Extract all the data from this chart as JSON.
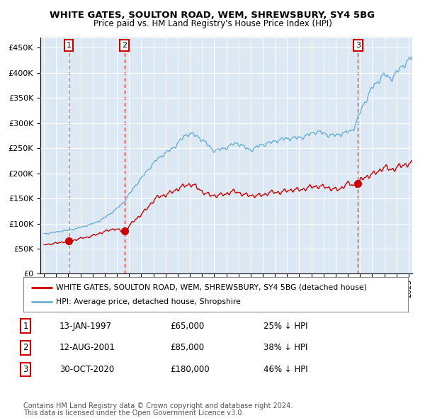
{
  "title1": "WHITE GATES, SOULTON ROAD, WEM, SHREWSBURY, SY4 5BG",
  "title2": "Price paid vs. HM Land Registry's House Price Index (HPI)",
  "bg_color": "#dce9f5",
  "hpi_color": "#6baed6",
  "sale_color": "#cc0000",
  "ylim": [
    0,
    470000
  ],
  "yticks": [
    0,
    50000,
    100000,
    150000,
    200000,
    250000,
    300000,
    350000,
    400000,
    450000
  ],
  "xlim_start": 1994.7,
  "xlim_end": 2025.3,
  "sale_dates": [
    1997.04,
    2001.62,
    2020.83
  ],
  "sale_prices": [
    65000,
    85000,
    180000
  ],
  "sale_labels": [
    "1",
    "2",
    "3"
  ],
  "footer_line1": "Contains HM Land Registry data © Crown copyright and database right 2024.",
  "footer_line2": "This data is licensed under the Open Government Licence v3.0.",
  "legend_line1": "WHITE GATES, SOULTON ROAD, WEM, SHREWSBURY, SY4 5BG (detached house)",
  "legend_line2": "HPI: Average price, detached house, Shropshire",
  "table_rows": [
    [
      "1",
      "13-JAN-1997",
      "£65,000",
      "25% ↓ HPI"
    ],
    [
      "2",
      "12-AUG-2001",
      "£85,000",
      "38% ↓ HPI"
    ],
    [
      "3",
      "30-OCT-2020",
      "£180,000",
      "46% ↓ HPI"
    ]
  ]
}
